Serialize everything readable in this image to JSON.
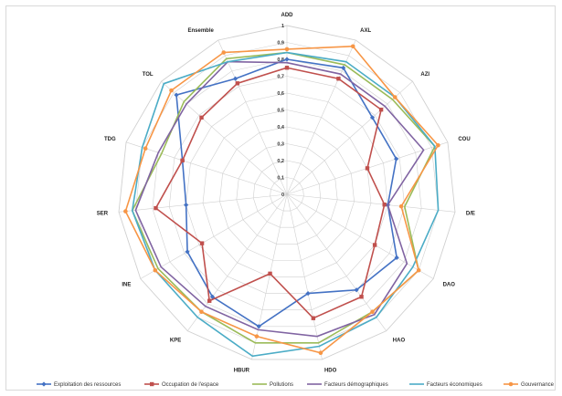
{
  "chart_data": {
    "type": "radar",
    "title": "",
    "axes": [
      "ADD",
      "AXL",
      "AZI",
      "COU",
      "D/E",
      "DAO",
      "HAO",
      "HDO",
      "HBUR",
      "KPE",
      "INE",
      "SER",
      "TDG",
      "TOL",
      "Ensemble"
    ],
    "ticks": [
      "0",
      "0,1",
      "0,2",
      "0,3",
      "0,4",
      "0,5",
      "0,6",
      "0,7",
      "0,8",
      "0,9",
      "1"
    ],
    "rlim": [
      0,
      1
    ],
    "grid": true,
    "legend_position": "bottom",
    "series": [
      {
        "name": "Exploitation des ressources",
        "color": "#4472c4",
        "values": [
          0.8,
          0.82,
          0.68,
          0.68,
          0.6,
          0.75,
          0.7,
          0.6,
          0.8,
          0.75,
          0.68,
          0.6,
          0.65,
          0.88,
          0.75
        ]
      },
      {
        "name": "Occupation de l'espace",
        "color": "#c0504d",
        "values": [
          0.75,
          0.75,
          0.75,
          0.5,
          0.58,
          0.6,
          0.75,
          0.75,
          0.48,
          0.78,
          0.58,
          0.78,
          0.65,
          0.68,
          0.72
        ]
      },
      {
        "name": "Pollutions",
        "color": "#9bbb59",
        "values": [
          0.84,
          0.84,
          0.84,
          0.92,
          0.7,
          0.9,
          0.86,
          0.9,
          0.9,
          0.86,
          0.88,
          0.92,
          0.78,
          0.82,
          0.88
        ]
      },
      {
        "name": "Facteurs démographiques",
        "color": "#8064a2",
        "values": [
          0.78,
          0.78,
          0.78,
          0.85,
          0.6,
          0.82,
          0.88,
          0.86,
          0.82,
          0.82,
          0.86,
          0.9,
          0.8,
          0.8,
          0.86
        ]
      },
      {
        "name": "Facteurs économiques",
        "color": "#4bacc6",
        "values": [
          0.84,
          0.86,
          0.86,
          0.92,
          0.9,
          0.86,
          0.9,
          0.92,
          0.98,
          0.9,
          0.9,
          0.92,
          0.9,
          0.98,
          0.86
        ]
      },
      {
        "name": "Gouvernance",
        "color": "#f79646",
        "values": [
          0.86,
          0.96,
          0.86,
          0.94,
          0.68,
          0.9,
          0.86,
          0.96,
          0.86,
          0.86,
          0.9,
          0.96,
          0.88,
          0.92,
          0.92
        ]
      }
    ]
  }
}
